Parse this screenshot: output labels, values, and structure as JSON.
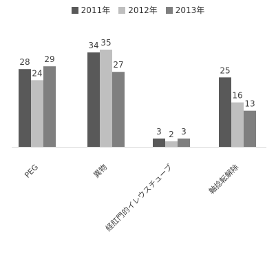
{
  "chart_data": {
    "type": "bar",
    "categories": [
      "PEG",
      "異物",
      "経肛門的イレウスチューブ",
      "軸捻転解除"
    ],
    "series": [
      {
        "name": "2011年",
        "values": [
          28,
          34,
          3,
          25
        ],
        "color": "#595959"
      },
      {
        "name": "2012年",
        "values": [
          24,
          35,
          2,
          16
        ],
        "color": "#bfbfbf"
      },
      {
        "name": "2013年",
        "values": [
          29,
          27,
          3,
          13
        ],
        "color": "#7f7f7f"
      }
    ],
    "ylim": [
      0,
      40
    ],
    "grid": false,
    "legend_position": "top",
    "data_labels": true
  }
}
